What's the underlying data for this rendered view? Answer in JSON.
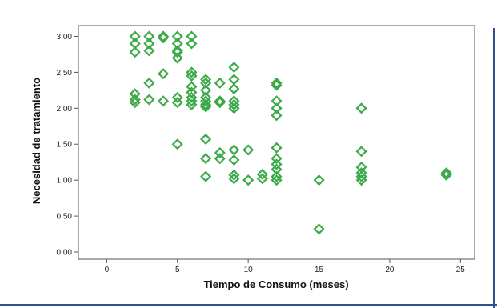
{
  "chart_data": {
    "type": "scatter",
    "title": "",
    "xlabel": "Tiempo de Consumo (meses)",
    "ylabel": "Necesidad de tratamiento",
    "xlim": [
      -2,
      26
    ],
    "ylim": [
      -0.1,
      3.15
    ],
    "grid": false,
    "legend": "none",
    "marker": "diamond-open",
    "colors": {
      "marker": "#3daa4a",
      "plot_border": "#555555",
      "page_border": "#2f4f8f"
    },
    "x_ticks": [
      {
        "value": 0,
        "label": "0"
      },
      {
        "value": 5,
        "label": "5"
      },
      {
        "value": 10,
        "label": "10"
      },
      {
        "value": 15,
        "label": "15"
      },
      {
        "value": 20,
        "label": "20"
      },
      {
        "value": 25,
        "label": "25"
      }
    ],
    "y_ticks": [
      {
        "value": 0,
        "label": "0,00"
      },
      {
        "value": 0.5,
        "label": "0,50"
      },
      {
        "value": 1,
        "label": "1,00"
      },
      {
        "value": 1.5,
        "label": "1,50"
      },
      {
        "value": 2,
        "label": "2,00"
      },
      {
        "value": 2.5,
        "label": "2,50"
      },
      {
        "value": 3,
        "label": "3,00"
      }
    ],
    "points": [
      {
        "x": 2,
        "y": 3.0
      },
      {
        "x": 2,
        "y": 2.9
      },
      {
        "x": 2,
        "y": 2.78
      },
      {
        "x": 2,
        "y": 2.2
      },
      {
        "x": 2,
        "y": 2.12
      },
      {
        "x": 2,
        "y": 2.08
      },
      {
        "x": 3,
        "y": 3.0
      },
      {
        "x": 3,
        "y": 2.9
      },
      {
        "x": 3,
        "y": 2.8
      },
      {
        "x": 3,
        "y": 2.35
      },
      {
        "x": 3,
        "y": 2.12
      },
      {
        "x": 4,
        "y": 3.0
      },
      {
        "x": 4,
        "y": 2.98
      },
      {
        "x": 4,
        "y": 2.48
      },
      {
        "x": 4,
        "y": 2.1
      },
      {
        "x": 5,
        "y": 3.0
      },
      {
        "x": 5,
        "y": 2.9
      },
      {
        "x": 5,
        "y": 2.8
      },
      {
        "x": 5,
        "y": 2.78
      },
      {
        "x": 5,
        "y": 2.7
      },
      {
        "x": 5,
        "y": 2.15
      },
      {
        "x": 5,
        "y": 2.08
      },
      {
        "x": 5,
        "y": 1.5
      },
      {
        "x": 6,
        "y": 3.0
      },
      {
        "x": 6,
        "y": 2.9
      },
      {
        "x": 6,
        "y": 2.5
      },
      {
        "x": 6,
        "y": 2.45
      },
      {
        "x": 6,
        "y": 2.3
      },
      {
        "x": 6,
        "y": 2.22
      },
      {
        "x": 6,
        "y": 2.15
      },
      {
        "x": 6,
        "y": 2.1
      },
      {
        "x": 6,
        "y": 2.05
      },
      {
        "x": 7,
        "y": 2.4
      },
      {
        "x": 7,
        "y": 2.35
      },
      {
        "x": 7,
        "y": 2.25
      },
      {
        "x": 7,
        "y": 2.15
      },
      {
        "x": 7,
        "y": 2.1
      },
      {
        "x": 7,
        "y": 2.05
      },
      {
        "x": 7,
        "y": 2.02
      },
      {
        "x": 7,
        "y": 1.57
      },
      {
        "x": 7,
        "y": 1.3
      },
      {
        "x": 7,
        "y": 1.05
      },
      {
        "x": 8,
        "y": 2.35
      },
      {
        "x": 8,
        "y": 2.1
      },
      {
        "x": 8,
        "y": 2.08
      },
      {
        "x": 8,
        "y": 1.38
      },
      {
        "x": 8,
        "y": 1.3
      },
      {
        "x": 9,
        "y": 2.57
      },
      {
        "x": 9,
        "y": 2.4
      },
      {
        "x": 9,
        "y": 2.27
      },
      {
        "x": 9,
        "y": 2.1
      },
      {
        "x": 9,
        "y": 2.05
      },
      {
        "x": 9,
        "y": 2.0
      },
      {
        "x": 9,
        "y": 1.42
      },
      {
        "x": 9,
        "y": 1.28
      },
      {
        "x": 9,
        "y": 1.07
      },
      {
        "x": 9,
        "y": 1.02
      },
      {
        "x": 10,
        "y": 1.42
      },
      {
        "x": 10,
        "y": 1.0
      },
      {
        "x": 11,
        "y": 1.08
      },
      {
        "x": 11,
        "y": 1.02
      },
      {
        "x": 12,
        "y": 2.35
      },
      {
        "x": 12,
        "y": 2.32
      },
      {
        "x": 12,
        "y": 2.1
      },
      {
        "x": 12,
        "y": 2.0
      },
      {
        "x": 12,
        "y": 1.9
      },
      {
        "x": 12,
        "y": 1.45
      },
      {
        "x": 12,
        "y": 1.3
      },
      {
        "x": 12,
        "y": 1.22
      },
      {
        "x": 12,
        "y": 1.15
      },
      {
        "x": 12,
        "y": 1.05
      },
      {
        "x": 12,
        "y": 1.0
      },
      {
        "x": 15,
        "y": 1.0
      },
      {
        "x": 15,
        "y": 0.32
      },
      {
        "x": 18,
        "y": 2.0
      },
      {
        "x": 18,
        "y": 1.4
      },
      {
        "x": 18,
        "y": 1.18
      },
      {
        "x": 18,
        "y": 1.1
      },
      {
        "x": 18,
        "y": 1.05
      },
      {
        "x": 18,
        "y": 1.0
      },
      {
        "x": 24,
        "y": 1.1
      },
      {
        "x": 24,
        "y": 1.07
      }
    ]
  }
}
